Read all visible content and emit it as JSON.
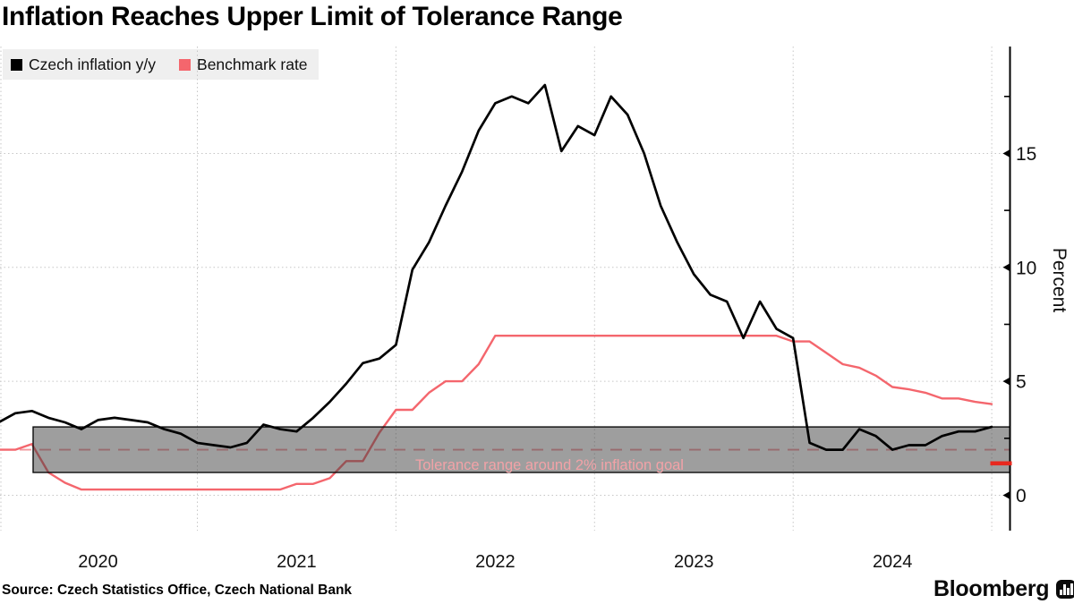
{
  "title": "Inflation Reaches Upper Limit of Tolerance Range",
  "source": "Source: Czech Statistics Office, Czech National Bank",
  "branding": {
    "wordmark": "Bloomberg",
    "icon": "bar-chart-bubble-icon"
  },
  "legend": {
    "items": [
      {
        "label": "Czech inflation y/y",
        "color": "#000000"
      },
      {
        "label": "Benchmark rate",
        "color": "#f4666d"
      }
    ]
  },
  "axes": {
    "y": {
      "title": "Percent",
      "ticks": [
        0,
        5,
        10,
        15
      ],
      "minor_ticks": [
        2.5,
        7.5,
        12.5,
        17.5
      ],
      "range": [
        -1.55,
        19.7
      ],
      "side": "right"
    },
    "x": {
      "labels": [
        "2020",
        "2021",
        "2022",
        "2023",
        "2024"
      ],
      "gridlines": "yearly-dotted"
    }
  },
  "annotations": {
    "tolerance_band": {
      "label": "Tolerance range around 2% inflation goal",
      "from": 1.0,
      "to": 3.0,
      "fill": "rgba(61,61,61,0.5)",
      "label_color": "#f2a2a7"
    },
    "goal_line": {
      "value": 2.0,
      "style": "dashed",
      "color": "#f2989e"
    },
    "axis_marker": {
      "value": 1.4,
      "color": "#e8281e"
    }
  },
  "chart_data": {
    "type": "line",
    "title": "Inflation Reaches Upper Limit of Tolerance Range",
    "ylabel": "Percent",
    "ylim": [
      -1.55,
      19.7
    ],
    "x_start": "2019-12",
    "x_end": "2024-12",
    "frequency": "monthly",
    "x_tick_labels": [
      "2020",
      "2021",
      "2022",
      "2023",
      "2024"
    ],
    "legend_position": "top-left",
    "grid": "dotted",
    "series": [
      {
        "name": "Czech inflation y/y",
        "color": "#000000",
        "values": [
          3.2,
          3.6,
          3.7,
          3.4,
          3.2,
          2.9,
          3.3,
          3.4,
          3.3,
          3.2,
          2.9,
          2.7,
          2.3,
          2.2,
          2.1,
          2.3,
          3.1,
          2.9,
          2.8,
          3.4,
          4.1,
          4.9,
          5.8,
          6.0,
          6.6,
          9.9,
          11.1,
          12.7,
          14.2,
          16.0,
          17.2,
          17.5,
          17.2,
          18.0,
          15.1,
          16.2,
          15.8,
          17.5,
          16.7,
          15.0,
          12.7,
          11.1,
          9.7,
          8.8,
          8.5,
          6.9,
          8.5,
          7.3,
          6.9,
          2.3,
          2.0,
          2.0,
          2.9,
          2.6,
          2.0,
          2.2,
          2.2,
          2.6,
          2.8,
          2.8,
          3.0
        ]
      },
      {
        "name": "Benchmark rate",
        "color": "#f4666d",
        "values": [
          2.0,
          2.0,
          2.25,
          1.0,
          0.55,
          0.25,
          0.25,
          0.25,
          0.25,
          0.25,
          0.25,
          0.25,
          0.25,
          0.25,
          0.25,
          0.25,
          0.25,
          0.25,
          0.5,
          0.5,
          0.75,
          1.5,
          1.5,
          2.75,
          3.75,
          3.75,
          4.5,
          5.0,
          5.0,
          5.75,
          7.0,
          7.0,
          7.0,
          7.0,
          7.0,
          7.0,
          7.0,
          7.0,
          7.0,
          7.0,
          7.0,
          7.0,
          7.0,
          7.0,
          7.0,
          7.0,
          7.0,
          7.0,
          6.75,
          6.75,
          6.25,
          5.75,
          5.6,
          5.25,
          4.75,
          4.65,
          4.5,
          4.25,
          4.25,
          4.1,
          4.0
        ]
      }
    ]
  }
}
